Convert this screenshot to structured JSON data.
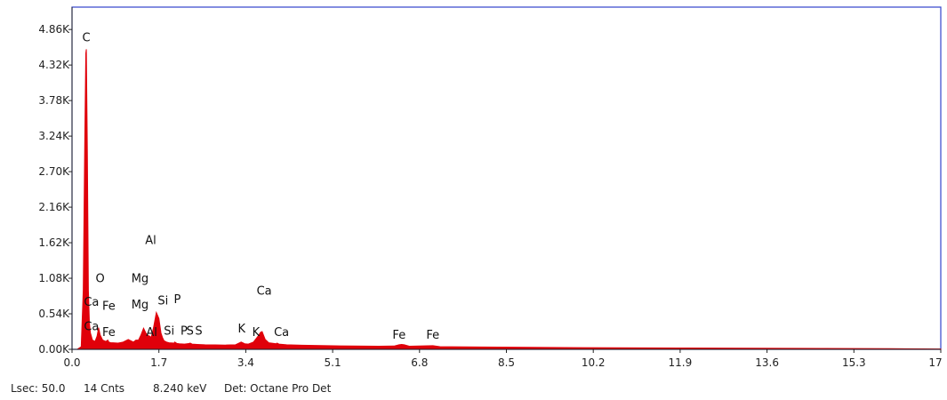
{
  "chart_data": {
    "type": "area",
    "title": "",
    "xlabel": "",
    "ylabel": "",
    "xlim": [
      0,
      17
    ],
    "ylim": [
      0,
      5200
    ],
    "x_ticks": [
      "0.0",
      "1.7",
      "3.4",
      "5.1",
      "6.8",
      "8.5",
      "10.2",
      "11.9",
      "13.6",
      "15.3",
      "17"
    ],
    "y_ticks": [
      "0.00K",
      "0.54K",
      "1.08K",
      "1.62K",
      "2.16K",
      "2.70K",
      "3.24K",
      "3.78K",
      "4.32K",
      "4.86K"
    ],
    "y_tick_values": [
      0,
      540,
      1080,
      1620,
      2160,
      2700,
      3240,
      3780,
      4320,
      4860
    ],
    "series": [
      {
        "color": "#e0000a",
        "x": [
          0.0,
          0.1,
          0.18,
          0.22,
          0.25,
          0.27,
          0.28,
          0.3,
          0.32,
          0.34,
          0.36,
          0.4,
          0.45,
          0.49,
          0.52,
          0.55,
          0.6,
          0.66,
          0.7,
          0.72,
          0.76,
          0.8,
          0.9,
          1.0,
          1.1,
          1.2,
          1.25,
          1.3,
          1.35,
          1.4,
          1.45,
          1.49,
          1.52,
          1.55,
          1.6,
          1.65,
          1.7,
          1.74,
          1.77,
          1.8,
          1.85,
          1.9,
          2.0,
          2.01,
          2.05,
          2.1,
          2.2,
          2.3,
          2.31,
          2.35,
          2.45,
          2.6,
          2.8,
          3.0,
          3.2,
          3.31,
          3.38,
          3.45,
          3.55,
          3.65,
          3.69,
          3.72,
          3.78,
          3.85,
          4.0,
          4.01,
          4.05,
          4.2,
          4.5,
          5.0,
          5.5,
          6.0,
          6.3,
          6.4,
          6.45,
          6.5,
          6.6,
          7.06,
          7.2,
          8.0,
          9.0,
          10.0,
          12.0,
          14.0,
          16.0,
          17.0
        ],
        "y": [
          0,
          0,
          40,
          900,
          3200,
          4500,
          4560,
          3000,
          900,
          400,
          250,
          140,
          120,
          200,
          330,
          220,
          140,
          120,
          140,
          110,
          100,
          100,
          95,
          110,
          150,
          110,
          140,
          140,
          220,
          320,
          240,
          210,
          200,
          180,
          350,
          560,
          470,
          250,
          180,
          130,
          110,
          100,
          95,
          110,
          90,
          85,
          80,
          90,
          95,
          80,
          75,
          70,
          68,
          65,
          70,
          110,
          85,
          80,
          110,
          210,
          260,
          270,
          150,
          100,
          85,
          95,
          80,
          70,
          62,
          55,
          50,
          47,
          50,
          70,
          75,
          70,
          48,
          55,
          40,
          35,
          30,
          25,
          20,
          15,
          10,
          5
        ]
      }
    ],
    "peak_labels": [
      {
        "text": "C",
        "x": 0.28,
        "y": 4680
      },
      {
        "text": "Al",
        "x": 1.54,
        "y": 1600
      },
      {
        "text": "O",
        "x": 0.55,
        "y": 1020
      },
      {
        "text": "Mg",
        "x": 1.33,
        "y": 1020
      },
      {
        "text": "Ca",
        "x": 0.38,
        "y": 660
      },
      {
        "text": "Fe",
        "x": 0.72,
        "y": 600
      },
      {
        "text": "Mg",
        "x": 1.33,
        "y": 620
      },
      {
        "text": "Si",
        "x": 1.78,
        "y": 680
      },
      {
        "text": "P",
        "x": 2.06,
        "y": 700
      },
      {
        "text": "Ca",
        "x": 3.76,
        "y": 830
      },
      {
        "text": "Ca",
        "x": 0.38,
        "y": 290
      },
      {
        "text": "Fe",
        "x": 0.72,
        "y": 200
      },
      {
        "text": "Al",
        "x": 1.56,
        "y": 200
      },
      {
        "text": "Si",
        "x": 1.9,
        "y": 220
      },
      {
        "text": "P",
        "x": 2.19,
        "y": 220
      },
      {
        "text": "S",
        "x": 2.31,
        "y": 220
      },
      {
        "text": "S",
        "x": 2.48,
        "y": 220
      },
      {
        "text": "K",
        "x": 3.32,
        "y": 260
      },
      {
        "text": "K",
        "x": 3.6,
        "y": 200
      },
      {
        "text": "Ca",
        "x": 4.1,
        "y": 200
      },
      {
        "text": "Fe",
        "x": 6.4,
        "y": 160
      },
      {
        "text": "Fe",
        "x": 7.06,
        "y": 160
      }
    ],
    "grid": false,
    "legend": "none"
  },
  "status": {
    "lsec": "Lsec: 50.0",
    "cnts": "14 Cnts",
    "kev": "8.240 keV",
    "det": "Det: Octane Pro Det"
  },
  "colors": {
    "frame": "#3344cc",
    "axis": "#222222",
    "spectrum": "#e0000a"
  }
}
